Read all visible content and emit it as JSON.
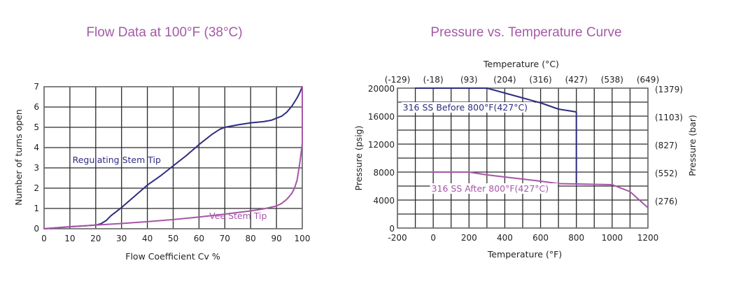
{
  "colors": {
    "title": "#a45aa6",
    "regulating": "#2e2c80",
    "vee": "#a755a8",
    "before": "#2e2c80",
    "after": "#a755a8",
    "grid": "#2a2a2a",
    "text": "#222222"
  },
  "chart_data": [
    {
      "type": "line",
      "title": "Flow Data at 100°F (38°C)",
      "xlabel": "Flow Coefficient Cv %",
      "ylabel": "Number of turns open",
      "xlim": [
        0,
        100
      ],
      "ylim": [
        0,
        7
      ],
      "xticks": [
        0,
        10,
        20,
        30,
        40,
        50,
        60,
        70,
        80,
        90,
        100
      ],
      "yticks": [
        0,
        1,
        2,
        3,
        4,
        5,
        6,
        7
      ],
      "grid": true,
      "series": [
        {
          "name": "Regulating Stem Tip",
          "color_key": "regulating",
          "x": [
            0,
            10,
            20,
            22,
            24,
            26,
            28,
            30,
            35,
            40,
            45,
            50,
            55,
            60,
            65,
            68,
            70,
            75,
            80,
            85,
            88,
            90,
            92,
            94,
            96,
            98,
            99,
            100
          ],
          "y": [
            0,
            0.1,
            0.18,
            0.25,
            0.4,
            0.65,
            0.85,
            1.05,
            1.6,
            2.15,
            2.6,
            3.1,
            3.6,
            4.15,
            4.65,
            4.9,
            5.0,
            5.12,
            5.22,
            5.28,
            5.35,
            5.45,
            5.55,
            5.75,
            6.05,
            6.45,
            6.7,
            7.0
          ]
        },
        {
          "name": "Vee Stem Tip",
          "color_key": "vee",
          "x": [
            0,
            10,
            20,
            30,
            40,
            50,
            60,
            70,
            80,
            85,
            90,
            92,
            94,
            96,
            97,
            98,
            99,
            100,
            100
          ],
          "y": [
            0,
            0.1,
            0.18,
            0.26,
            0.35,
            0.45,
            0.58,
            0.72,
            0.88,
            0.98,
            1.12,
            1.25,
            1.45,
            1.75,
            2.0,
            2.4,
            3.2,
            4.2,
            7.0
          ]
        }
      ],
      "annotations": [
        {
          "text": "Regulating Stem Tip",
          "x": 11,
          "y": 3.25,
          "color_key": "regulating"
        },
        {
          "text": "Vee Stem Tip",
          "x": 64,
          "y": 0.48,
          "color_key": "vee"
        }
      ]
    },
    {
      "type": "line",
      "title": "Pressure vs. Temperature Curve",
      "xlabel": "Temperature (°F)",
      "ylabel": "Pressure (psig)",
      "x2label": "Temperature (°C)",
      "y2label": "Pressure (bar)",
      "xlim": [
        -200,
        1200
      ],
      "ylim": [
        0,
        20000
      ],
      "xticks": [
        -200,
        0,
        200,
        400,
        600,
        800,
        1000,
        1200
      ],
      "xtick_labels": [
        "-200",
        "0",
        "200",
        "400",
        "600",
        "800",
        "1000",
        "1200"
      ],
      "yticks": [
        0,
        4000,
        8000,
        12000,
        16000,
        20000
      ],
      "ytick_labels": [
        "0",
        "4000",
        "8000",
        "12000",
        "16000",
        "20000"
      ],
      "x2ticks": [
        -200,
        0,
        200,
        400,
        600,
        800,
        1000,
        1200
      ],
      "x2tick_labels": [
        "(-129)",
        "(-18)",
        "(93)",
        "(204)",
        "(316)",
        "(427)",
        "(538)",
        "(649)"
      ],
      "y2ticks": [
        4000,
        8000,
        12000,
        16000,
        20000
      ],
      "y2tick_labels": [
        "(276)",
        "(552)",
        "(827)",
        "(1103)",
        "(1379)"
      ],
      "grid": true,
      "grid_x_step": 100,
      "grid_y_step": 2000,
      "series": [
        {
          "name": "316 SS Before 800°F(427°C)",
          "color_key": "before",
          "x": [
            -100,
            300,
            400,
            500,
            600,
            700,
            800,
            800
          ],
          "y": [
            20000,
            20000,
            19300,
            18600,
            17900,
            17000,
            16600,
            6300
          ]
        },
        {
          "name": "316 SS After 800°F(427°C)",
          "color_key": "after",
          "x": [
            0,
            200,
            300,
            400,
            500,
            600,
            700,
            800,
            1000,
            1100,
            1200
          ],
          "y": [
            8000,
            8000,
            7600,
            7300,
            7000,
            6700,
            6350,
            6300,
            6200,
            5200,
            2900
          ]
        }
      ],
      "annotations": [
        {
          "text": "316 SS Before 800°F(427°C)",
          "x": -170,
          "y": 16800,
          "color_key": "before"
        },
        {
          "text": "316 SS After 800°F(427°C)",
          "x": -10,
          "y": 5200,
          "color_key": "after"
        }
      ]
    }
  ]
}
